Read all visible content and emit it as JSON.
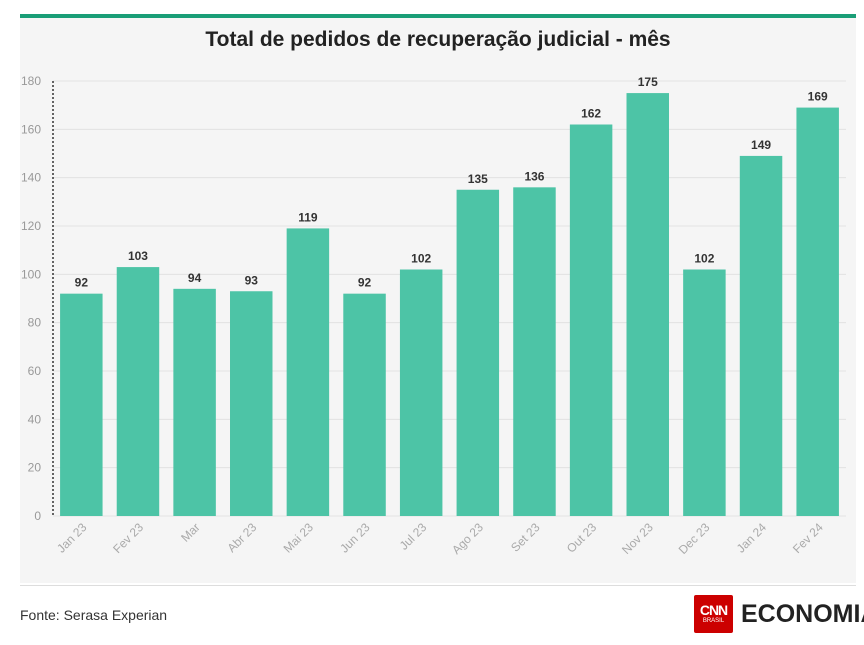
{
  "brand_color": "#1a9e77",
  "source": "Fonte: Serasa Experian",
  "logo": {
    "mark_top": "CNN",
    "mark_bottom": "BRASIL",
    "word": "ECONOMIA"
  },
  "chart_data": {
    "type": "bar",
    "title": "Total de pedidos de recuperação judicial - mês",
    "xlabel": "",
    "ylabel": "",
    "categories": [
      "Jan 23",
      "Fev 23",
      "Mar",
      "Abr 23",
      "Mai 23",
      "Jun 23",
      "Jul 23",
      "Ago 23",
      "Set 23",
      "Out 23",
      "Nov 23",
      "Dec 23",
      "Jan 24",
      "Fev 24"
    ],
    "values": [
      92,
      103,
      94,
      93,
      119,
      92,
      102,
      135,
      136,
      162,
      175,
      102,
      149,
      169
    ],
    "ylim": [
      0,
      180
    ],
    "yticks": [
      0,
      20,
      40,
      60,
      80,
      100,
      120,
      140,
      160,
      180
    ],
    "bar_color": "#4dc4a6",
    "grid": true,
    "legend": "none"
  }
}
